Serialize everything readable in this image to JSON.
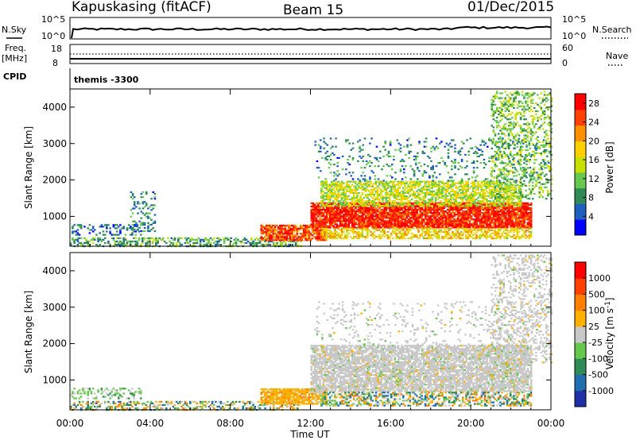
{
  "header": {
    "station": "Kapuskasing (fitACF)",
    "beam": "Beam 15",
    "date": "01/Dec/2015"
  },
  "top_panels": {
    "nsky_label": "N.Sky",
    "nsky_ticks": [
      "10^5",
      "10^0"
    ],
    "nsky_right_ticks": [
      "10^5",
      "10^0"
    ],
    "nsearch_label": "N.Search",
    "freq_label": "Freq.",
    "freq_unit": "[MHz]",
    "freq_ticks": [
      "18",
      "8"
    ],
    "nave_ticks": [
      "60",
      "0"
    ],
    "nave_label": "Nave",
    "cpid_label": "CPID",
    "cpid_value": "themis -3300"
  },
  "chart_data": [
    {
      "type": "heatmap",
      "name": "power-panel",
      "xlabel": "",
      "ylabel": "Slant Range [km]",
      "x_ticks": [
        "00:00",
        "04:00",
        "08:00",
        "12:00",
        "16:00",
        "20:00",
        "00:00"
      ],
      "xlim_hours": [
        0,
        24
      ],
      "ylim": [
        180,
        4500
      ],
      "y_ticks": [
        1000,
        2000,
        3000,
        4000
      ],
      "colorbar": {
        "label": "Power [dB]",
        "ticks": [
          4,
          8,
          12,
          16,
          20,
          24,
          28
        ],
        "range": [
          0,
          30
        ],
        "colors": [
          "#0000ff",
          "#1f5fbf",
          "#2e8b57",
          "#66c94d",
          "#c8e000",
          "#ffd000",
          "#ff9000",
          "#ff4000",
          "#ff0000"
        ]
      },
      "scatter_regions": [
        {
          "t0": 0.0,
          "t1": 11.5,
          "r0": 180,
          "r1": 420,
          "density": 0.45,
          "level": 10
        },
        {
          "t0": 0.0,
          "t1": 3.5,
          "r0": 500,
          "r1": 800,
          "density": 0.3,
          "level": 6
        },
        {
          "t0": 3.0,
          "t1": 4.2,
          "r0": 600,
          "r1": 1700,
          "density": 0.25,
          "level": 8
        },
        {
          "t0": 9.5,
          "t1": 12.8,
          "r0": 350,
          "r1": 800,
          "density": 0.85,
          "level": 24
        },
        {
          "t0": 12.0,
          "t1": 23.0,
          "r0": 700,
          "r1": 1400,
          "density": 0.9,
          "level": 27
        },
        {
          "t0": 12.5,
          "t1": 22.5,
          "r0": 1300,
          "r1": 2000,
          "density": 0.65,
          "level": 15
        },
        {
          "t0": 12.5,
          "t1": 23.0,
          "r0": 400,
          "r1": 700,
          "density": 0.55,
          "level": 18
        },
        {
          "t0": 12.2,
          "t1": 24.0,
          "r0": 2000,
          "r1": 3200,
          "density": 0.12,
          "level": 8
        },
        {
          "t0": 21.0,
          "t1": 24.0,
          "r0": 1500,
          "r1": 4500,
          "density": 0.3,
          "level": 12
        }
      ]
    },
    {
      "type": "heatmap",
      "name": "velocity-panel",
      "xlabel": "Time UT",
      "ylabel": "Slant Range [km]",
      "x_ticks": [
        "00:00",
        "04:00",
        "08:00",
        "12:00",
        "16:00",
        "20:00",
        "00:00"
      ],
      "xlim_hours": [
        0,
        24
      ],
      "ylim": [
        180,
        4500
      ],
      "y_ticks": [
        1000,
        2000,
        3000,
        4000
      ],
      "colorbar": {
        "label": "Velocity [m s^-1]",
        "ticks": [
          "1000",
          "500",
          "100",
          "25",
          "-25",
          "-100",
          "-500",
          "-1000"
        ],
        "colors": [
          "#1e2fa8",
          "#1f6fb0",
          "#2e8b57",
          "#66c94d",
          "#c8c8c8",
          "#ffb000",
          "#ff8000",
          "#ff4000",
          "#ff0000"
        ]
      },
      "scatter_regions": [
        {
          "t0": 0.0,
          "t1": 11.5,
          "r0": 180,
          "r1": 420,
          "density": 0.4,
          "cls": "mix-low"
        },
        {
          "t0": 0.0,
          "t1": 3.5,
          "r0": 500,
          "r1": 800,
          "density": 0.3,
          "cls": "green"
        },
        {
          "t0": 9.5,
          "t1": 12.8,
          "r0": 350,
          "r1": 800,
          "density": 0.85,
          "cls": "orange"
        },
        {
          "t0": 12.0,
          "t1": 23.0,
          "r0": 700,
          "r1": 2000,
          "density": 0.8,
          "cls": "grey"
        },
        {
          "t0": 12.5,
          "t1": 23.0,
          "r0": 300,
          "r1": 700,
          "density": 0.5,
          "cls": "mix-low"
        },
        {
          "t0": 12.2,
          "t1": 24.0,
          "r0": 2000,
          "r1": 3200,
          "density": 0.1,
          "cls": "grey"
        },
        {
          "t0": 21.0,
          "t1": 24.0,
          "r0": 1500,
          "r1": 4500,
          "density": 0.28,
          "cls": "grey"
        }
      ]
    }
  ]
}
